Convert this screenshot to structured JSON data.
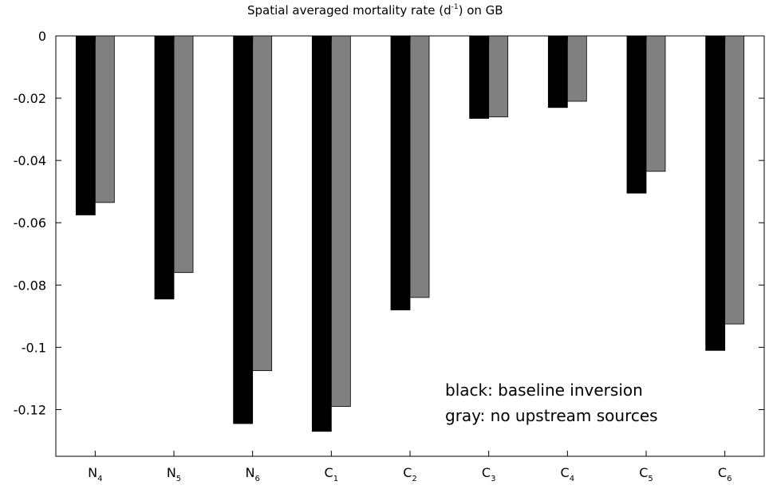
{
  "chart_data": {
    "type": "bar",
    "title": {
      "prefix": "Spatial averaged mortality rate (d",
      "superscript": "-1",
      "suffix": ") on GB"
    },
    "categories": [
      {
        "base": "N",
        "sub": "4"
      },
      {
        "base": "N",
        "sub": "5"
      },
      {
        "base": "N",
        "sub": "6"
      },
      {
        "base": "C",
        "sub": "1"
      },
      {
        "base": "C",
        "sub": "2"
      },
      {
        "base": "C",
        "sub": "3"
      },
      {
        "base": "C",
        "sub": "4"
      },
      {
        "base": "C",
        "sub": "5"
      },
      {
        "base": "C",
        "sub": "6"
      }
    ],
    "series": [
      {
        "name": "baseline inversion",
        "color": "#000000",
        "values": [
          -0.0575,
          -0.0845,
          -0.1245,
          -0.127,
          -0.088,
          -0.0265,
          -0.023,
          -0.0505,
          -0.101
        ]
      },
      {
        "name": "no upstream sources",
        "color": "#808080",
        "values": [
          -0.0535,
          -0.076,
          -0.1075,
          -0.119,
          -0.084,
          -0.026,
          -0.021,
          -0.0435,
          -0.0925
        ]
      }
    ],
    "ylim": [
      -0.135,
      0
    ],
    "yticks": [
      0,
      -0.02,
      -0.04,
      -0.06,
      -0.08,
      -0.1,
      -0.12
    ],
    "ytick_labels": [
      "0",
      "-0.02",
      "-0.04",
      "-0.06",
      "-0.08",
      "-0.1",
      "-0.12"
    ],
    "xlabel": "",
    "ylabel": "",
    "grid": false,
    "legend": {
      "placement": "bottom-right",
      "lines": [
        "black: baseline inversion",
        "gray: no upstream sources"
      ]
    }
  }
}
